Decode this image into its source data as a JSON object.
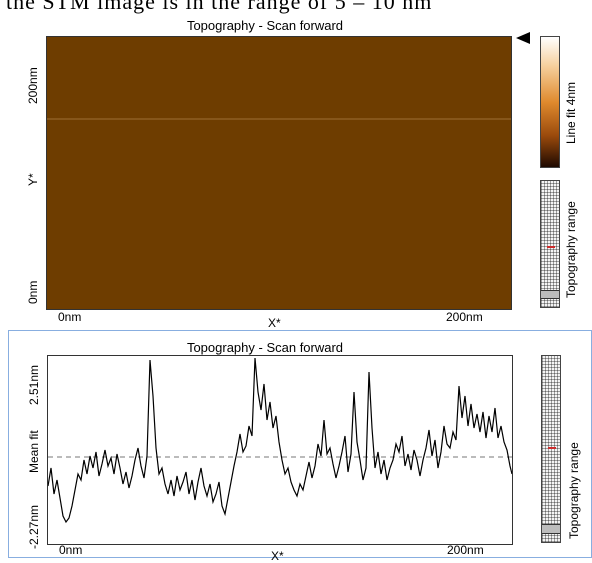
{
  "page_header": {
    "text": "the STM image is in the range of 5 – 10 nm"
  },
  "top_panel": {
    "title": "Topography - Scan forward",
    "y_axis": {
      "label": "Y*",
      "top_tick": "200nm",
      "bottom_tick": "0nm"
    },
    "x_axis": {
      "label": "X*",
      "left_tick": "0nm",
      "right_tick": "200nm"
    },
    "colorbar": {
      "label": "Line fit 4nm",
      "colors": [
        "#ffffff",
        "#f3c68c",
        "#e08a2e",
        "#a4500f",
        "#2a0e00"
      ]
    },
    "range_bar": {
      "label": "Topography range",
      "marker_position": 0.58
    }
  },
  "bottom_panel": {
    "title": "Topography - Scan forward",
    "y_axis": {
      "label": "Mean fit",
      "top_tick": "2.51nm",
      "bottom_tick": "-2.27nm"
    },
    "x_axis": {
      "label": "X*",
      "left_tick": "0nm",
      "right_tick": "200nm"
    },
    "range_bar": {
      "label": "Topography range",
      "marker_position": 0.47
    }
  },
  "colors": {
    "panel_border": "#88aee0",
    "range_marker": "#cc2b2b",
    "dashed_line": "#777777"
  }
}
